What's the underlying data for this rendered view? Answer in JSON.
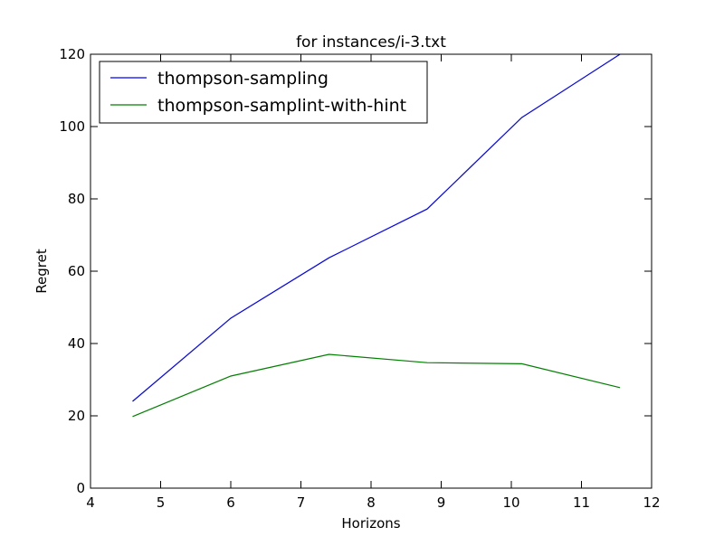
{
  "chart_data": {
    "type": "line",
    "title": "for instances/i-3.txt",
    "xlabel": "Horizons",
    "ylabel": "Regret",
    "xlim": [
      4,
      12
    ],
    "ylim": [
      0,
      120
    ],
    "xticks": [
      4,
      5,
      6,
      7,
      8,
      9,
      10,
      11,
      12
    ],
    "yticks": [
      0,
      20,
      40,
      60,
      80,
      100,
      120
    ],
    "x": [
      4.6,
      6.0,
      7.4,
      8.8,
      10.15,
      11.55
    ],
    "series": [
      {
        "name": "thompson-sampling",
        "color": "#0000ff",
        "values": [
          24,
          47,
          63.7,
          77.2,
          102.5,
          120
        ]
      },
      {
        "name": "thompson-samplint-with-hint",
        "color": "#008000",
        "values": [
          19.8,
          31,
          37,
          34.7,
          34.4,
          27.8
        ]
      }
    ],
    "legend_position": "top-left",
    "grid": false
  }
}
